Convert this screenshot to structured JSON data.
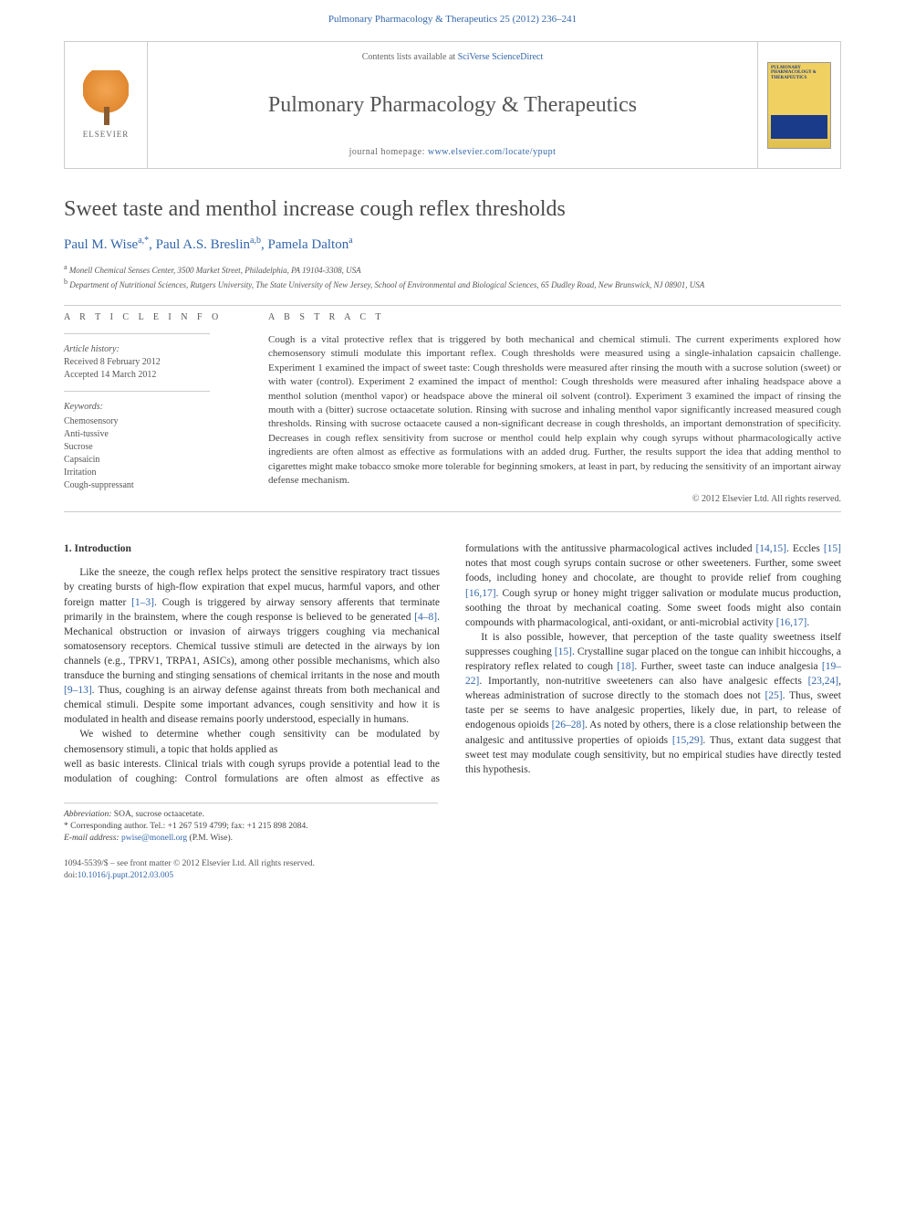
{
  "header": {
    "citation": "Pulmonary Pharmacology & Therapeutics 25 (2012) 236–241",
    "contents_line_pre": "Contents lists available at ",
    "contents_link": "SciVerse ScienceDirect",
    "journal_name": "Pulmonary Pharmacology & Therapeutics",
    "homepage_pre": "journal homepage: ",
    "homepage_url": "www.elsevier.com/locate/ypupt",
    "elsevier_label": "ELSEVIER",
    "cover_title": "PULMONARY PHARMACOLOGY & THERAPEUTICS"
  },
  "article": {
    "title": "Sweet taste and menthol increase cough reflex thresholds",
    "authors_html": "Paul M. Wise<sup class='aff-mark'>a,*</sup>, Paul A.S. Breslin<sup class='aff-mark'>a,b</sup>, Pamela Dalton<sup class='aff-mark'>a</sup>",
    "affiliations": [
      {
        "mark": "a",
        "text": "Monell Chemical Senses Center, 3500 Market Street, Philadelphia, PA 19104-3308, USA"
      },
      {
        "mark": "b",
        "text": "Department of Nutritional Sciences, Rutgers University, The State University of New Jersey, School of Environmental and Biological Sciences, 65 Dudley Road, New Brunswick, NJ 08901, USA"
      }
    ]
  },
  "info": {
    "heading": "A R T I C L E  I N F O",
    "history_label": "Article history:",
    "received": "Received 8 February 2012",
    "accepted": "Accepted 14 March 2012",
    "keywords_label": "Keywords:",
    "keywords": [
      "Chemosensory",
      "Anti-tussive",
      "Sucrose",
      "Capsaicin",
      "Irritation",
      "Cough-suppressant"
    ]
  },
  "abstract": {
    "heading": "A B S T R A C T",
    "text": "Cough is a vital protective reflex that is triggered by both mechanical and chemical stimuli. The current experiments explored how chemosensory stimuli modulate this important reflex. Cough thresholds were measured using a single-inhalation capsaicin challenge. Experiment 1 examined the impact of sweet taste: Cough thresholds were measured after rinsing the mouth with a sucrose solution (sweet) or with water (control). Experiment 2 examined the impact of menthol: Cough thresholds were measured after inhaling headspace above a menthol solution (menthol vapor) or headspace above the mineral oil solvent (control). Experiment 3 examined the impact of rinsing the mouth with a (bitter) sucrose octaacetate solution. Rinsing with sucrose and inhaling menthol vapor significantly increased measured cough thresholds. Rinsing with sucrose octaacete caused a non-significant decrease in cough thresholds, an important demonstration of specificity. Decreases in cough reflex sensitivity from sucrose or menthol could help explain why cough syrups without pharmacologically active ingredients are often almost as effective as formulations with an added drug. Further, the results support the idea that adding menthol to cigarettes might make tobacco smoke more tolerable for beginning smokers, at least in part, by reducing the sensitivity of an important airway defense mechanism.",
    "copyright": "© 2012 Elsevier Ltd. All rights reserved."
  },
  "body": {
    "section1_heading": "1. Introduction",
    "p1_a": "Like the sneeze, the cough reflex helps protect the sensitive respiratory tract tissues by creating bursts of high-flow expiration that expel mucus, harmful vapors, and other foreign matter ",
    "p1_cite1": "[1–3]",
    "p1_b": ". Cough is triggered by airway sensory afferents that terminate primarily in the brainstem, where the cough response is believed to be generated ",
    "p1_cite2": "[4–8]",
    "p1_c": ". Mechanical obstruction or invasion of airways triggers coughing via mechanical somatosensory receptors. Chemical tussive stimuli are detected in the airways by ion channels (e.g., TPRV1, TRPA1, ASICs), among other possible mechanisms, which also transduce the burning and stinging sensations of chemical irritants in the nose and mouth ",
    "p1_cite3": "[9–13]",
    "p1_d": ". Thus, coughing is an airway defense against threats from both mechanical and chemical stimuli. Despite some important advances, cough sensitivity and how it is modulated in health and disease remains poorly understood, especially in humans.",
    "p2": "We wished to determine whether cough sensitivity can be modulated by chemosensory stimuli, a topic that holds applied as",
    "p3_a": "well as basic interests. Clinical trials with cough syrups provide a potential lead to the modulation of coughing: Control formulations are often almost as effective as formulations with the antitussive pharmacological actives included ",
    "p3_cite1": "[14,15]",
    "p3_b": ". Eccles ",
    "p3_cite2": "[15]",
    "p3_c": " notes that most cough syrups contain sucrose or other sweeteners. Further, some sweet foods, including honey and chocolate, are thought to provide relief from coughing ",
    "p3_cite3": "[16,17]",
    "p3_d": ". Cough syrup or honey might trigger salivation or modulate mucus production, soothing the throat by mechanical coating. Some sweet foods might also contain compounds with pharmacological, anti-oxidant, or anti-microbial activity ",
    "p3_cite4": "[16,17]",
    "p3_e": ".",
    "p4_a": "It is also possible, however, that perception of the taste quality sweetness itself suppresses coughing ",
    "p4_cite1": "[15]",
    "p4_b": ". Crystalline sugar placed on the tongue can inhibit hiccoughs, a respiratory reflex related to cough ",
    "p4_cite2": "[18]",
    "p4_c": ". Further, sweet taste can induce analgesia ",
    "p4_cite3": "[19–22]",
    "p4_d": ". Importantly, non-nutritive sweeteners can also have analgesic effects ",
    "p4_cite4": "[23,24]",
    "p4_e": ", whereas administration of sucrose directly to the stomach does not ",
    "p4_cite5": "[25]",
    "p4_f": ". Thus, sweet taste per se seems to have analgesic properties, likely due, in part, to release of endogenous opioids ",
    "p4_cite6": "[26–28]",
    "p4_g": ". As noted by others, there is a close relationship between the analgesic and antitussive properties of opioids ",
    "p4_cite7": "[15,29]",
    "p4_h": ". Thus, extant data suggest that sweet test may modulate cough sensitivity, but no empirical studies have directly tested this hypothesis."
  },
  "footnotes": {
    "abbrev_label": "Abbreviation:",
    "abbrev_text": " SOA, sucrose octaacetate.",
    "corr_label": "* Corresponding author. ",
    "corr_text": "Tel.: +1 267 519 4799; fax: +1 215 898 2084.",
    "email_label": "E-mail address: ",
    "email": "pwise@monell.org",
    "email_tail": " (P.M. Wise)."
  },
  "frontmatter": {
    "line1": "1094-5539/$ – see front matter © 2012 Elsevier Ltd. All rights reserved.",
    "doi_label": "doi:",
    "doi": "10.1016/j.pupt.2012.03.005"
  }
}
